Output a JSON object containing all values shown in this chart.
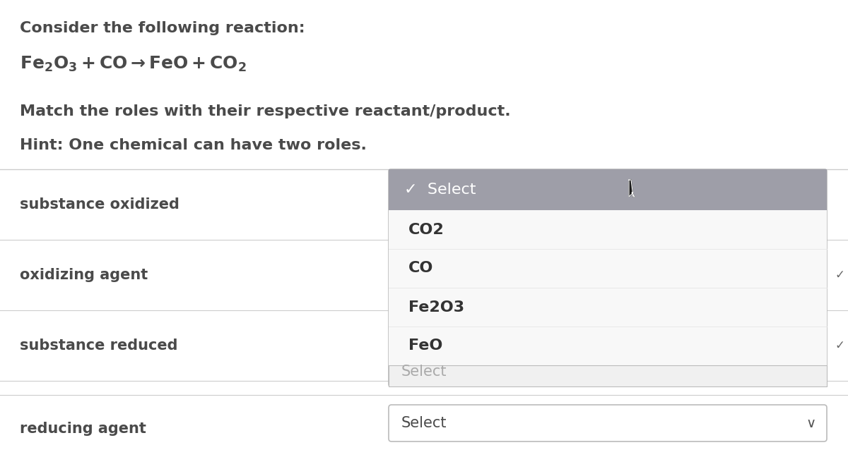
{
  "bg_color": "#ffffff",
  "title_text": "Consider the following reaction:",
  "match_text": "Match the roles with their respective reactant/product.",
  "hint_text": "Hint: One chemical can have two roles.",
  "label_color": "#4a4a4a",
  "label_color_light": "#555555",
  "row_labels": [
    "substance oxidized",
    "oxidizing agent",
    "substance reduced",
    "reducing agent"
  ],
  "dropdown_items": [
    "CO2",
    "CO",
    "Fe2O3",
    "FeO"
  ],
  "selected_text": "✓  Select",
  "selected_bg": "#9e9ea8",
  "selected_fg": "#ffffff",
  "item_bg": "#f8f8f8",
  "item_fg": "#333333",
  "select_placeholder": "Select",
  "select_placeholder_color": "#888888",
  "border_color": "#bbbbbb",
  "divider_color": "#cccccc",
  "font_size_body": 16,
  "font_size_reaction": 18,
  "font_size_label": 15,
  "font_size_dropdown": 15,
  "figw": 12.0,
  "figh": 6.48,
  "dpi": 100
}
